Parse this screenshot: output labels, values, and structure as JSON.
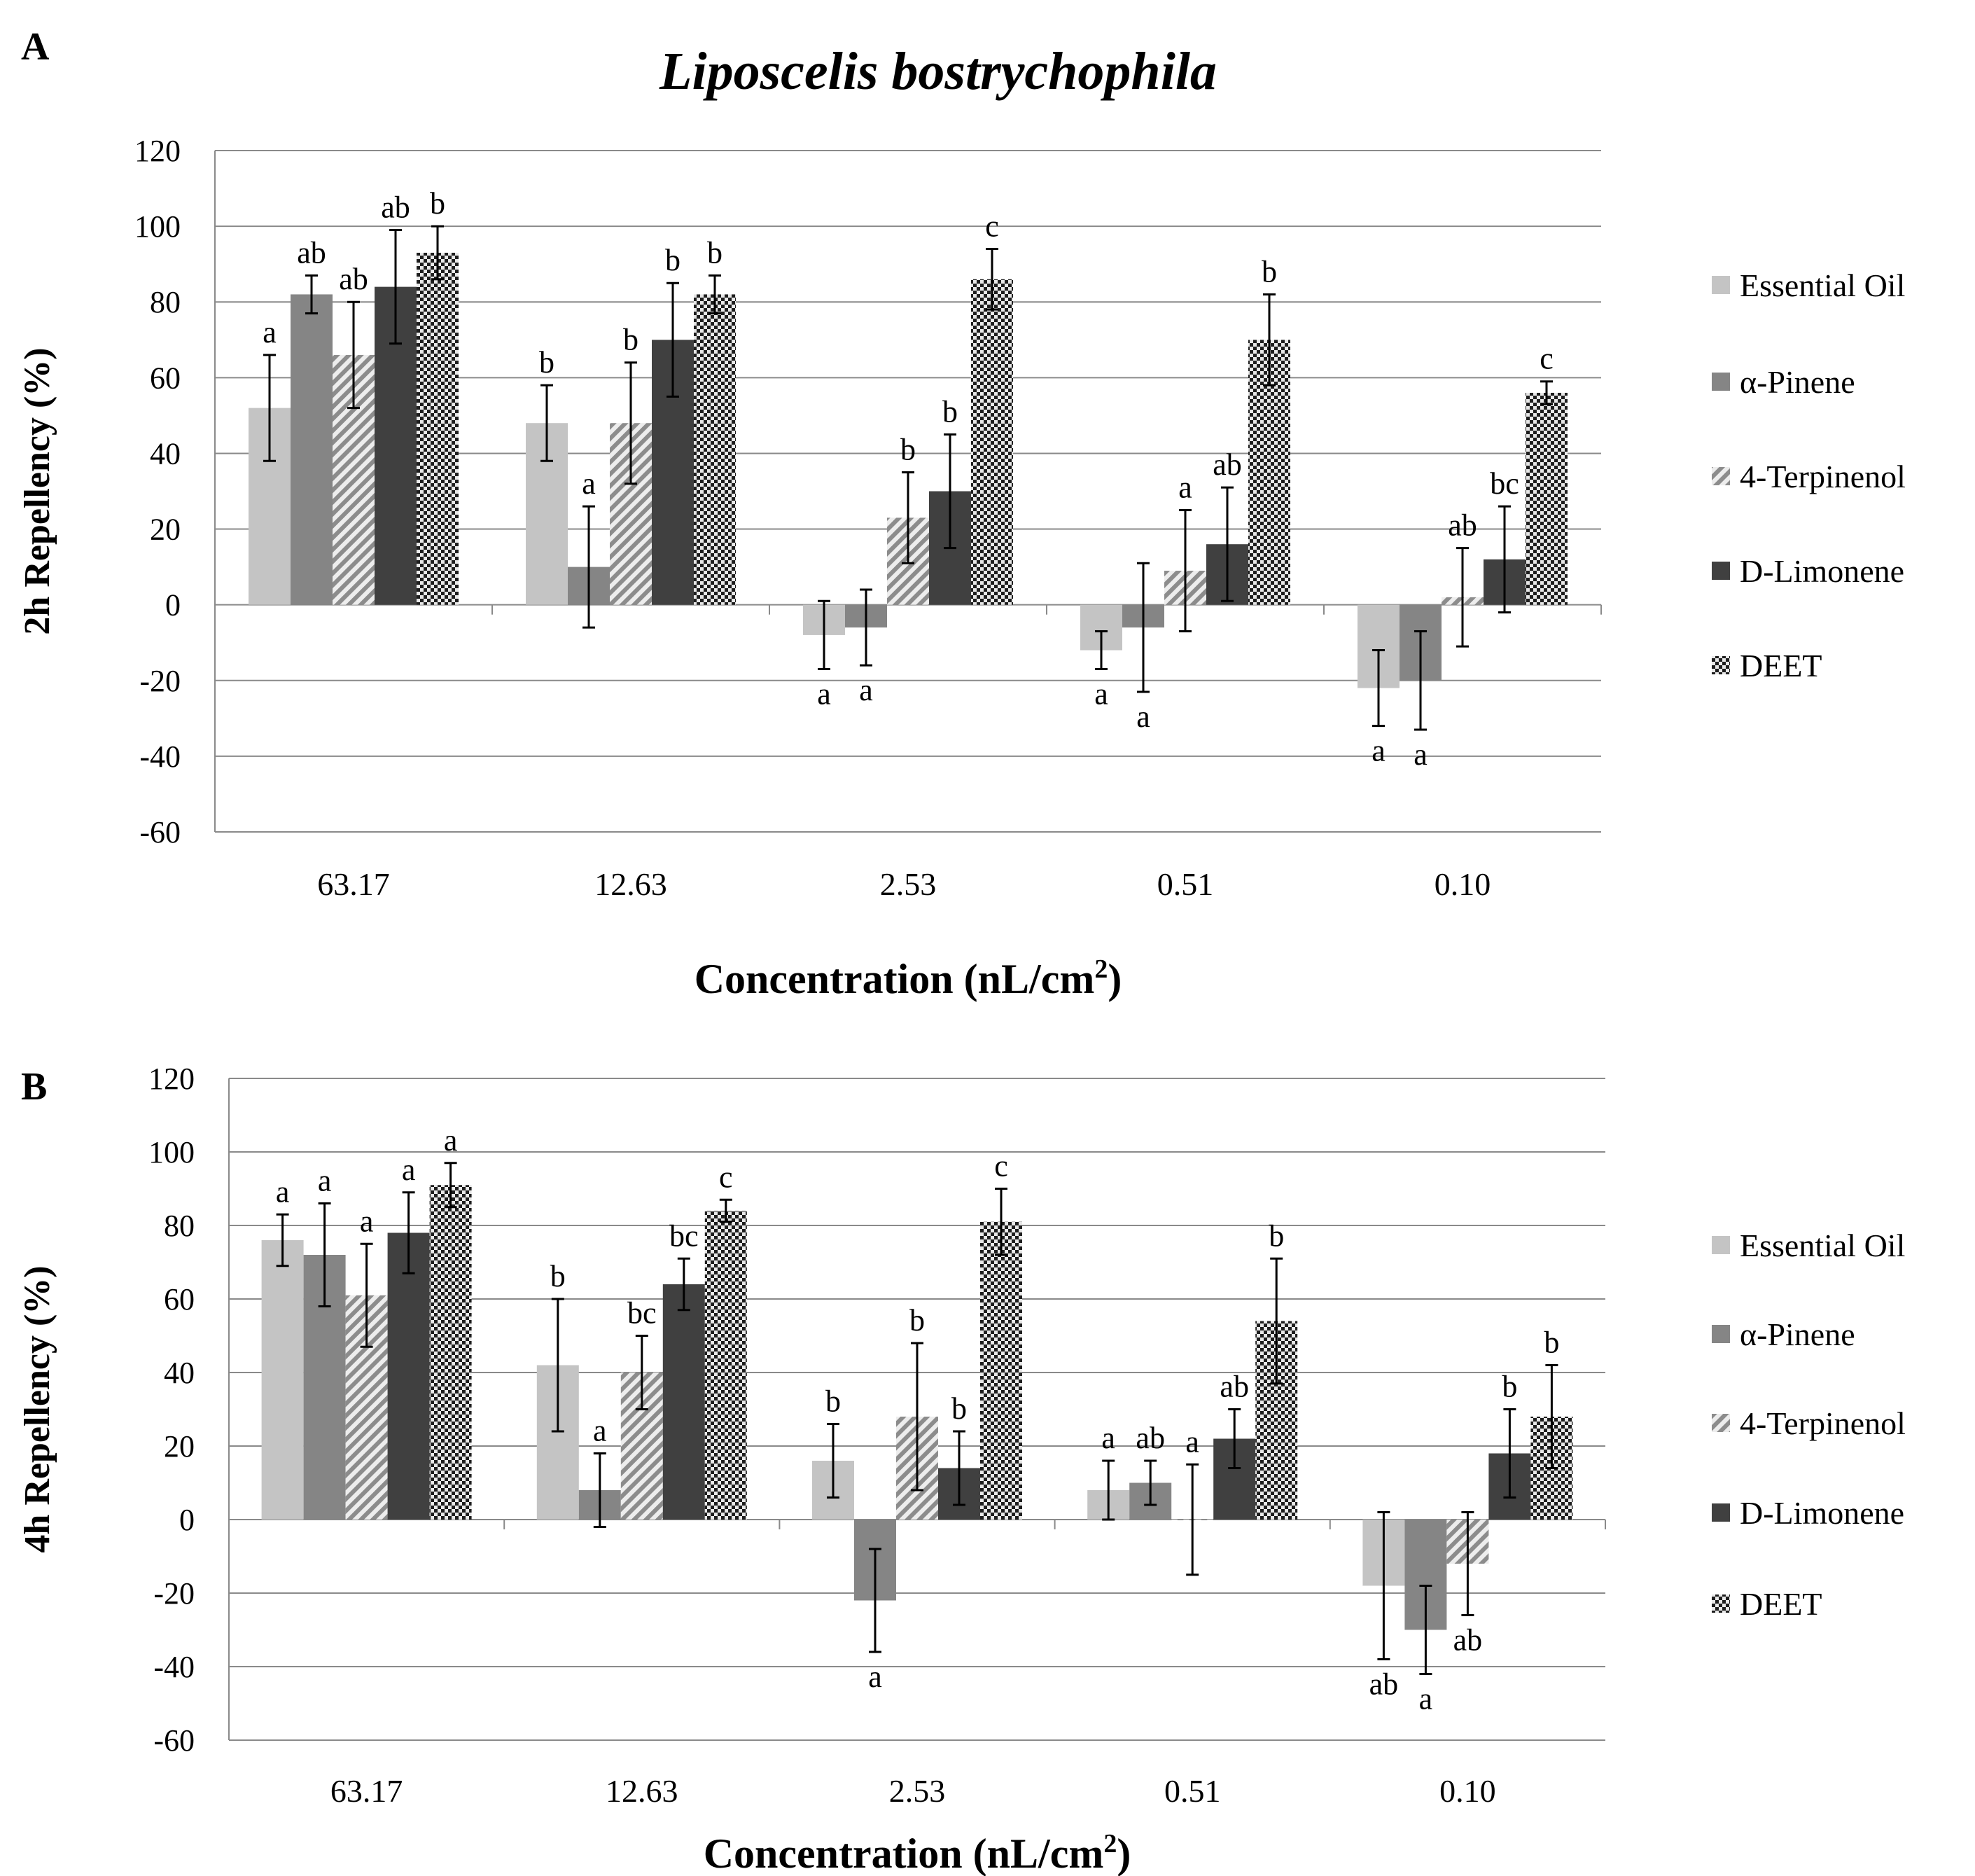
{
  "figure_title": "Liposcelis bostrychophila",
  "series_styles": [
    {
      "name": "Essential Oil",
      "color": "#c4c4c4",
      "pattern": "solid"
    },
    {
      "name": "α-Pinene",
      "color": "#858585",
      "pattern": "solid"
    },
    {
      "name": "4-Terpinenol",
      "color": "#9b9b9b",
      "pattern": "diagonal-hatch"
    },
    {
      "name": "D-Limonene",
      "color": "#404040",
      "pattern": "solid"
    },
    {
      "name": "DEET",
      "color": "#2a2a2a",
      "pattern": "checker"
    }
  ],
  "chart_data": [
    {
      "panel_label": "A",
      "type": "bar",
      "title": "Liposcelis bostrychophila",
      "xlabel": "Concentration (nL/cm",
      "xlabel_sup": "2",
      "xlabel_end": ")",
      "ylabel": "2h Repellency (%)",
      "ylim": [
        -60,
        120
      ],
      "yticks": [
        -60,
        -40,
        -20,
        0,
        20,
        40,
        60,
        80,
        100,
        120
      ],
      "grid": true,
      "legend": "right",
      "categories": [
        "63.17",
        "12.63",
        "2.53",
        "0.51",
        "0.10"
      ],
      "series": [
        {
          "name": "Essential Oil",
          "values": [
            52,
            48,
            -8,
            -12,
            -22
          ],
          "errors": [
            14,
            10,
            9,
            5,
            10
          ],
          "letters": [
            "a",
            "b",
            "a",
            "a",
            "a"
          ]
        },
        {
          "name": "α-Pinene",
          "values": [
            82,
            10,
            -6,
            -6,
            -20
          ],
          "errors": [
            5,
            16,
            10,
            17,
            13
          ],
          "letters": [
            "ab",
            "a",
            "a",
            "a",
            "a"
          ]
        },
        {
          "name": "4-Terpinenol",
          "values": [
            66,
            48,
            23,
            9,
            2
          ],
          "errors": [
            14,
            16,
            12,
            16,
            13
          ],
          "letters": [
            "ab",
            "b",
            "b",
            "a",
            "ab"
          ]
        },
        {
          "name": "D-Limonene",
          "values": [
            84,
            70,
            30,
            16,
            12
          ],
          "errors": [
            15,
            15,
            15,
            15,
            14
          ],
          "letters": [
            "ab",
            "b",
            "b",
            "ab",
            "bc"
          ]
        },
        {
          "name": "DEET",
          "values": [
            93,
            82,
            86,
            70,
            56
          ],
          "errors": [
            7,
            5,
            8,
            12,
            3
          ],
          "letters": [
            "b",
            "b",
            "c",
            "b",
            "c"
          ]
        }
      ]
    },
    {
      "panel_label": "B",
      "type": "bar",
      "title": "",
      "xlabel": "Concentration (nL/cm",
      "xlabel_sup": "2",
      "xlabel_end": ")",
      "ylabel": "4h Repellency (%)",
      "ylim": [
        -60,
        120
      ],
      "yticks": [
        -60,
        -40,
        -20,
        0,
        20,
        40,
        60,
        80,
        100,
        120
      ],
      "grid": true,
      "legend": "right",
      "categories": [
        "63.17",
        "12.63",
        "2.53",
        "0.51",
        "0.10"
      ],
      "series": [
        {
          "name": "Essential Oil",
          "values": [
            76,
            42,
            16,
            8,
            -18
          ],
          "errors": [
            7,
            18,
            10,
            8,
            20
          ],
          "letters": [
            "a",
            "b",
            "b",
            "a",
            "ab"
          ]
        },
        {
          "name": "α-Pinene",
          "values": [
            72,
            8,
            -22,
            10,
            -30
          ],
          "errors": [
            14,
            10,
            14,
            6,
            12
          ],
          "letters": [
            "a",
            "a",
            "a",
            "ab",
            "a"
          ]
        },
        {
          "name": "4-Terpinenol",
          "values": [
            61,
            40,
            28,
            0,
            -12
          ],
          "errors": [
            14,
            10,
            20,
            15,
            14
          ],
          "letters": [
            "a",
            "bc",
            "b",
            "a",
            "ab"
          ]
        },
        {
          "name": "D-Limonene",
          "values": [
            78,
            64,
            14,
            22,
            18
          ],
          "errors": [
            11,
            7,
            10,
            8,
            12
          ],
          "letters": [
            "a",
            "bc",
            "b",
            "ab",
            "b"
          ]
        },
        {
          "name": "DEET",
          "values": [
            91,
            84,
            81,
            54,
            28
          ],
          "errors": [
            6,
            3,
            9,
            17,
            14
          ],
          "letters": [
            "a",
            "c",
            "c",
            "b",
            "b"
          ]
        }
      ]
    }
  ]
}
